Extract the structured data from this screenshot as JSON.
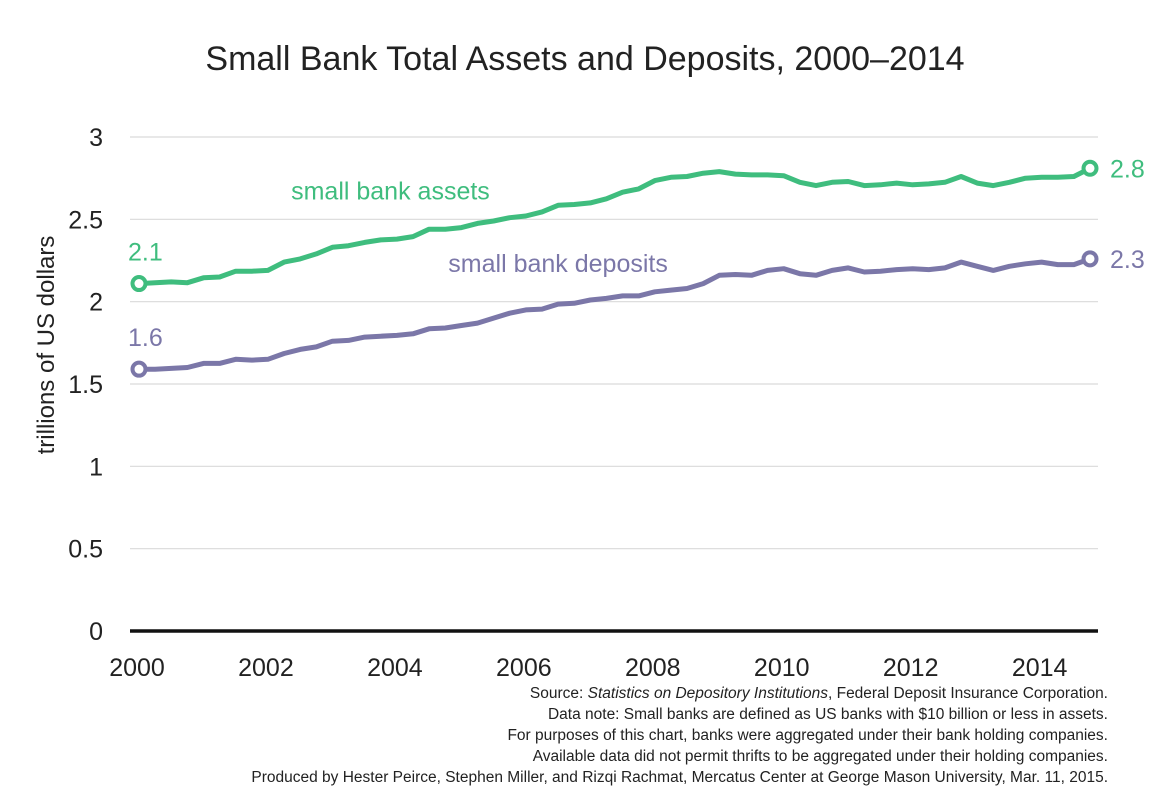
{
  "chart_data": {
    "type": "line",
    "title": "Small Bank Total Assets and Deposits, 2000–2014",
    "ylabel": "trillions of US dollars",
    "xlabel": "",
    "xlim": [
      2000,
      2014.75
    ],
    "ylim": [
      0,
      3
    ],
    "y_ticks": [
      "0",
      "0.5",
      "1",
      "1.5",
      "2",
      "2.5",
      "3"
    ],
    "y_tick_values": [
      0,
      0.5,
      1,
      1.5,
      2,
      2.5,
      3
    ],
    "x_ticks": [
      "2000",
      "2002",
      "2004",
      "2006",
      "2008",
      "2010",
      "2012",
      "2014"
    ],
    "x_tick_values": [
      2000,
      2002,
      2004,
      2006,
      2008,
      2010,
      2012,
      2014
    ],
    "grid": true,
    "legend": "inline labels",
    "series": [
      {
        "name": "small bank assets",
        "color": "#3fbd7e",
        "start_label": "2.1",
        "end_label": "2.8",
        "x": [
          2000,
          2000.25,
          2000.5,
          2000.75,
          2001,
          2001.25,
          2001.5,
          2001.75,
          2002,
          2002.25,
          2002.5,
          2002.75,
          2003,
          2003.25,
          2003.5,
          2003.75,
          2004,
          2004.25,
          2004.5,
          2004.75,
          2005,
          2005.25,
          2005.5,
          2005.75,
          2006,
          2006.25,
          2006.5,
          2006.75,
          2007,
          2007.25,
          2007.5,
          2007.75,
          2008,
          2008.25,
          2008.5,
          2008.75,
          2009,
          2009.25,
          2009.5,
          2009.75,
          2010,
          2010.25,
          2010.5,
          2010.75,
          2011,
          2011.25,
          2011.5,
          2011.75,
          2012,
          2012.25,
          2012.5,
          2012.75,
          2013,
          2013.25,
          2013.5,
          2013.75,
          2014,
          2014.25,
          2014.5,
          2014.75
        ],
        "values": [
          2.11,
          2.115,
          2.12,
          2.115,
          2.145,
          2.15,
          2.185,
          2.185,
          2.19,
          2.24,
          2.26,
          2.29,
          2.33,
          2.34,
          2.36,
          2.375,
          2.38,
          2.395,
          2.44,
          2.44,
          2.45,
          2.475,
          2.49,
          2.51,
          2.52,
          2.545,
          2.585,
          2.59,
          2.6,
          2.625,
          2.665,
          2.685,
          2.735,
          2.755,
          2.76,
          2.78,
          2.79,
          2.775,
          2.77,
          2.77,
          2.765,
          2.725,
          2.705,
          2.725,
          2.73,
          2.705,
          2.71,
          2.72,
          2.71,
          2.715,
          2.725,
          2.76,
          2.72,
          2.705,
          2.725,
          2.75,
          2.755,
          2.755,
          2.76,
          2.81
        ]
      },
      {
        "name": "small bank deposits",
        "color": "#7b77a8",
        "start_label": "1.6",
        "end_label": "2.3",
        "x": [
          2000,
          2000.25,
          2000.5,
          2000.75,
          2001,
          2001.25,
          2001.5,
          2001.75,
          2002,
          2002.25,
          2002.5,
          2002.75,
          2003,
          2003.25,
          2003.5,
          2003.75,
          2004,
          2004.25,
          2004.5,
          2004.75,
          2005,
          2005.25,
          2005.5,
          2005.75,
          2006,
          2006.25,
          2006.5,
          2006.75,
          2007,
          2007.25,
          2007.5,
          2007.75,
          2008,
          2008.25,
          2008.5,
          2008.75,
          2009,
          2009.25,
          2009.5,
          2009.75,
          2010,
          2010.25,
          2010.5,
          2010.75,
          2011,
          2011.25,
          2011.5,
          2011.75,
          2012,
          2012.25,
          2012.5,
          2012.75,
          2013,
          2013.25,
          2013.5,
          2013.75,
          2014,
          2014.25,
          2014.5,
          2014.75
        ],
        "values": [
          1.59,
          1.59,
          1.595,
          1.6,
          1.625,
          1.625,
          1.65,
          1.645,
          1.65,
          1.685,
          1.71,
          1.725,
          1.76,
          1.765,
          1.785,
          1.79,
          1.795,
          1.805,
          1.835,
          1.84,
          1.855,
          1.87,
          1.9,
          1.93,
          1.95,
          1.955,
          1.985,
          1.99,
          2.01,
          2.02,
          2.035,
          2.035,
          2.06,
          2.07,
          2.08,
          2.11,
          2.16,
          2.165,
          2.16,
          2.19,
          2.2,
          2.17,
          2.16,
          2.19,
          2.205,
          2.18,
          2.185,
          2.195,
          2.2,
          2.195,
          2.205,
          2.24,
          2.215,
          2.19,
          2.215,
          2.23,
          2.24,
          2.225,
          2.225,
          2.26
        ]
      }
    ]
  },
  "source": {
    "prefix": "Source: ",
    "title_italic": "Statistics on Depository Institutions",
    "suffix": ", Federal Deposit Insurance Corporation.",
    "note1": "Data note: Small banks are defined as US banks with $10 billion or less in assets.",
    "note2": "For purposes of this chart, banks were aggregated under their bank holding companies.",
    "note3": "Available data did not permit thrifts to be aggregated under their holding companies.",
    "credit": "Produced by Hester Peirce, Stephen Miller, and Rizqi Rachmat, Mercatus Center at George Mason University, Mar. 11, 2015."
  }
}
